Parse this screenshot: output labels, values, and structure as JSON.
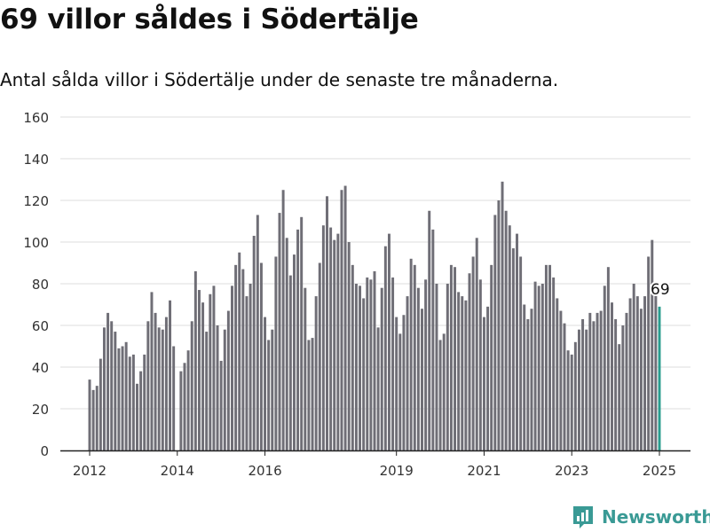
{
  "title": "69 villor såldes i Södertälje",
  "subtitle": "Antal sålda villor i Södertälje under de senaste tre månaderna.",
  "brand": {
    "name": "Newsworthy",
    "icon": "newsworthy-logo-icon"
  },
  "colors": {
    "bar": "#6f6e76",
    "highlight": "#2a9d8f",
    "grid": "#dddddd",
    "axis": "#222222",
    "brand": "#3a9a95"
  },
  "chart_data": {
    "type": "bar",
    "title": "",
    "xlabel": "",
    "ylabel": "",
    "ylim": [
      0,
      160
    ],
    "yticks": [
      0,
      20,
      40,
      60,
      80,
      100,
      120,
      140,
      160
    ],
    "xticks": [
      2012,
      2014,
      2016,
      2019,
      2021,
      2023,
      2025
    ],
    "grid": true,
    "x_start": "2012-01",
    "x_end": "2025-01",
    "values": [
      34,
      29,
      31,
      44,
      59,
      66,
      62,
      57,
      49,
      50,
      52,
      45,
      46,
      32,
      38,
      46,
      62,
      76,
      66,
      59,
      58,
      64,
      72,
      50,
      0,
      38,
      42,
      48,
      62,
      86,
      77,
      71,
      57,
      75,
      79,
      60,
      43,
      58,
      67,
      79,
      89,
      95,
      87,
      74,
      80,
      103,
      113,
      90,
      64,
      53,
      58,
      93,
      114,
      125,
      102,
      84,
      94,
      106,
      112,
      78,
      53,
      54,
      74,
      90,
      108,
      122,
      107,
      101,
      104,
      125,
      127,
      100,
      89,
      80,
      79,
      73,
      83,
      82,
      86,
      59,
      78,
      98,
      104,
      83,
      64,
      56,
      65,
      74,
      92,
      89,
      78,
      68,
      82,
      115,
      106,
      80,
      53,
      56,
      80,
      89,
      88,
      76,
      74,
      72,
      85,
      93,
      102,
      82,
      64,
      69,
      89,
      113,
      120,
      129,
      115,
      108,
      97,
      104,
      93,
      70,
      63,
      68,
      81,
      79,
      80,
      89,
      89,
      83,
      73,
      67,
      61,
      48,
      46,
      52,
      58,
      63,
      58,
      66,
      62,
      66,
      67,
      79,
      88,
      71,
      63,
      51,
      60,
      66,
      73,
      80,
      74,
      68,
      74,
      93,
      101,
      75,
      69
    ],
    "annotation": {
      "label": "69",
      "value": 69
    }
  }
}
